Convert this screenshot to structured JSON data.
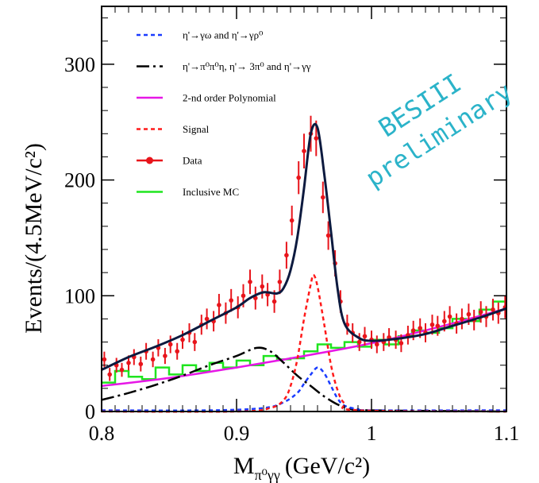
{
  "chart_data": {
    "type": "line",
    "xlabel": "M",
    "xlabel_sub": "π⁰γγ",
    "xlabel_unit": "(GeV/c²)",
    "ylabel": "Events/(4.5MeV/c²)",
    "xlim": [
      0.8,
      1.1
    ],
    "ylim": [
      0,
      350
    ],
    "x_ticks": [
      0.8,
      0.9,
      1.0,
      1.1
    ],
    "x_tick_labels": [
      "0.8",
      "0.9",
      "1",
      "1.1"
    ],
    "y_ticks": [
      0,
      100,
      200,
      300
    ],
    "y_tick_labels": [
      "0",
      "100",
      "200",
      "300"
    ],
    "grid": false,
    "legend_position": "top-left",
    "watermark": [
      "BESIII",
      "preliminary"
    ],
    "colors": {
      "data": "#e8141b",
      "total_fit": "#0d1a3f",
      "peaking_bkg": "#000000",
      "polynomial": "#e617e6",
      "signal": "#ff1a1a",
      "rho_omega": "#1a3cff",
      "inclusive_mc": "#1fe51f"
    },
    "series": [
      {
        "key": "rho_omega",
        "name": "η'→γω and η'→γρ⁰",
        "style": "dotted",
        "x": [
          0.8,
          0.88,
          0.92,
          0.935,
          0.945,
          0.95,
          0.955,
          0.96,
          0.965,
          0.97,
          0.975,
          0.98,
          0.99,
          1.0,
          1.1
        ],
        "y": [
          1,
          1,
          3,
          8,
          16,
          24,
          32,
          38,
          33,
          22,
          11,
          5,
          2,
          1,
          1
        ]
      },
      {
        "key": "peaking_bkg",
        "name": "η'→π⁰π⁰η, η'→ 3π⁰ and η'→γγ",
        "style": "dash-dot",
        "x": [
          0.8,
          0.82,
          0.84,
          0.86,
          0.88,
          0.9,
          0.915,
          0.925,
          0.935,
          0.945,
          0.955,
          0.965,
          0.975,
          0.985,
          1.0,
          1.1
        ],
        "y": [
          10,
          16,
          23,
          31,
          40,
          48,
          55,
          52,
          42,
          31,
          22,
          13,
          6,
          2,
          1,
          0
        ]
      },
      {
        "key": "polynomial",
        "name": "2-nd order Polynomial",
        "style": "solid",
        "x": [
          0.8,
          0.85,
          0.9,
          0.95,
          1.0,
          1.05,
          1.1
        ],
        "y": [
          22,
          29,
          38,
          48,
          59,
          73,
          89
        ]
      },
      {
        "key": "signal",
        "name": "Signal",
        "style": "dotted",
        "x": [
          0.8,
          0.9,
          0.925,
          0.935,
          0.94,
          0.945,
          0.95,
          0.955,
          0.957,
          0.96,
          0.965,
          0.97,
          0.975,
          0.98,
          0.99,
          1.1
        ],
        "y": [
          0,
          0,
          3,
          10,
          22,
          45,
          80,
          110,
          118,
          108,
          75,
          40,
          18,
          7,
          1,
          0
        ]
      },
      {
        "key": "data",
        "name": "Data",
        "style": "points",
        "x": [
          0.802,
          0.806,
          0.811,
          0.815,
          0.82,
          0.824,
          0.829,
          0.833,
          0.838,
          0.842,
          0.847,
          0.851,
          0.856,
          0.86,
          0.865,
          0.869,
          0.874,
          0.878,
          0.883,
          0.887,
          0.892,
          0.896,
          0.901,
          0.905,
          0.91,
          0.914,
          0.919,
          0.923,
          0.928,
          0.932,
          0.937,
          0.941,
          0.946,
          0.95,
          0.955,
          0.959,
          0.964,
          0.968,
          0.973,
          0.977,
          0.982,
          0.986,
          0.991,
          0.995,
          1.0,
          1.004,
          1.009,
          1.013,
          1.018,
          1.022,
          1.027,
          1.031,
          1.036,
          1.04,
          1.045,
          1.049,
          1.054,
          1.058,
          1.063,
          1.067,
          1.072,
          1.076,
          1.081,
          1.085,
          1.09,
          1.094,
          1.099
        ],
        "y": [
          45,
          32,
          40,
          36,
          42,
          47,
          41,
          52,
          45,
          55,
          48,
          58,
          52,
          62,
          68,
          60,
          75,
          80,
          78,
          92,
          85,
          96,
          90,
          100,
          112,
          98,
          108,
          101,
          95,
          112,
          135,
          165,
          202,
          225,
          240,
          236,
          185,
          152,
          128,
          95,
          75,
          68,
          60,
          65,
          62,
          58,
          60,
          64,
          62,
          59,
          66,
          70,
          72,
          68,
          75,
          74,
          78,
          82,
          76,
          80,
          84,
          79,
          86,
          82,
          88,
          85,
          90
        ]
      },
      {
        "key": "inclusive_mc",
        "name": "Inclusive MC",
        "style": "steps",
        "x": [
          0.8,
          0.81,
          0.82,
          0.83,
          0.84,
          0.85,
          0.86,
          0.87,
          0.88,
          0.89,
          0.9,
          0.91,
          0.92,
          0.93,
          0.94,
          0.95,
          0.96,
          0.97,
          0.98,
          0.99,
          1.0,
          1.01,
          1.02,
          1.03,
          1.04,
          1.05,
          1.06,
          1.07,
          1.08,
          1.09
        ],
        "y": [
          25,
          35,
          30,
          28,
          38,
          32,
          40,
          35,
          42,
          38,
          44,
          40,
          48,
          45,
          46,
          52,
          58,
          55,
          60,
          56,
          62,
          58,
          65,
          70,
          68,
          72,
          80,
          78,
          88,
          95
        ]
      },
      {
        "key": "total_fit",
        "name": "",
        "style": "solid",
        "x": [
          0.8,
          0.82,
          0.84,
          0.86,
          0.88,
          0.9,
          0.91,
          0.92,
          0.93,
          0.935,
          0.94,
          0.945,
          0.95,
          0.955,
          0.96,
          0.965,
          0.97,
          0.975,
          0.98,
          0.99,
          1.0,
          1.02,
          1.04,
          1.06,
          1.08,
          1.1
        ],
        "y": [
          36,
          47,
          56,
          66,
          78,
          90,
          98,
          103,
          102,
          107,
          122,
          150,
          193,
          240,
          245,
          205,
          155,
          105,
          76,
          64,
          61,
          63,
          67,
          74,
          81,
          89
        ]
      }
    ],
    "legend_order": [
      "rho_omega",
      "peaking_bkg",
      "polynomial",
      "signal",
      "data",
      "inclusive_mc"
    ]
  }
}
